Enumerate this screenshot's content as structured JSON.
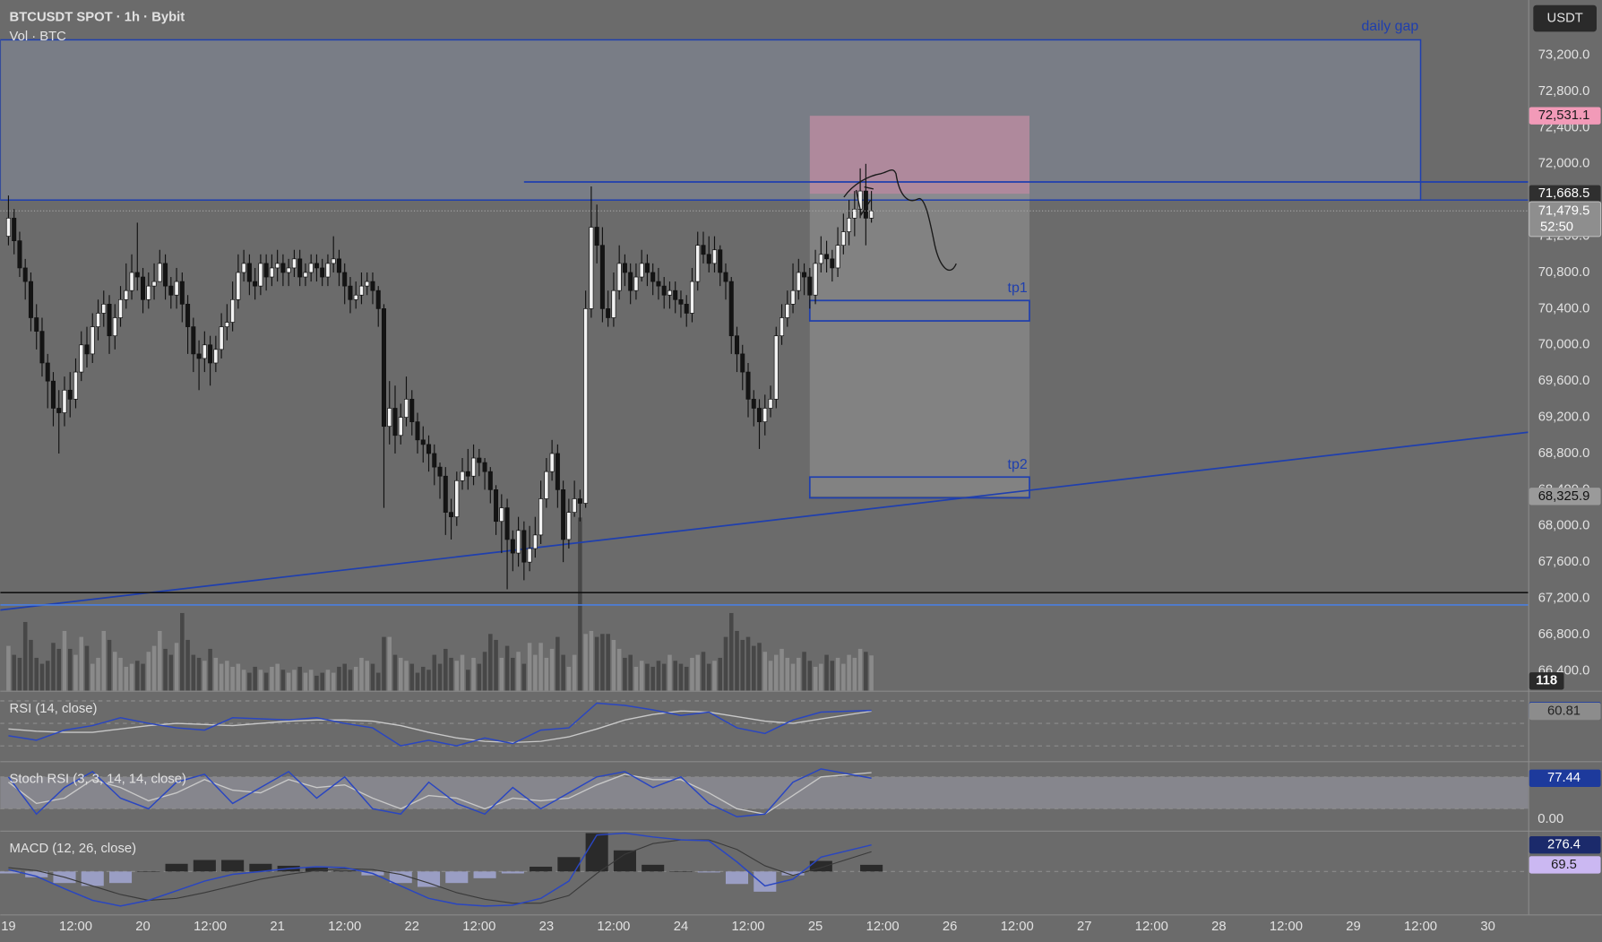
{
  "chart_data": {
    "type": "candlestick",
    "title": "BTCUSDT SPOT · 1h · Bybit",
    "volume_title": "Vol · BTC",
    "currency": "USDT",
    "xlim": [
      -1.46,
      271.2
    ],
    "ylim": [
      66180,
      73810
    ],
    "volume_ylim": [
      0,
      2313
    ],
    "up_color": "#f2f2f2",
    "down_color": "#141414",
    "wick_color": "#111111",
    "volume_up_color": "#8a8a8a",
    "volume_down_color": "#474747",
    "xticks": [
      {
        "value": 0,
        "label": "19"
      },
      {
        "value": 12,
        "label": "12:00"
      },
      {
        "value": 24,
        "label": "20"
      },
      {
        "value": 36,
        "label": "12:00"
      },
      {
        "value": 48,
        "label": "21"
      },
      {
        "value": 60,
        "label": "12:00"
      },
      {
        "value": 72,
        "label": "22"
      },
      {
        "value": 84,
        "label": "12:00"
      },
      {
        "value": 96,
        "label": "23"
      },
      {
        "value": 108,
        "label": "12:00"
      },
      {
        "value": 120,
        "label": "24"
      },
      {
        "value": 132,
        "label": "12:00"
      },
      {
        "value": 144,
        "label": "25"
      },
      {
        "value": 156,
        "label": "12:00"
      },
      {
        "value": 168,
        "label": "26"
      },
      {
        "value": 180,
        "label": "12:00"
      },
      {
        "value": 192,
        "label": "27"
      },
      {
        "value": 204,
        "label": "12:00"
      },
      {
        "value": 216,
        "label": "28"
      },
      {
        "value": 228,
        "label": "12:00"
      },
      {
        "value": 240,
        "label": "29"
      },
      {
        "value": 252,
        "label": "12:00"
      },
      {
        "value": 264,
        "label": "30"
      }
    ],
    "yticks": [
      {
        "value": 66400,
        "label": "66,400.0"
      },
      {
        "value": 66800,
        "label": "66,800.0"
      },
      {
        "value": 67200,
        "label": "67,200.0"
      },
      {
        "value": 67600,
        "label": "67,600.0"
      },
      {
        "value": 68000,
        "label": "68,000.0"
      },
      {
        "value": 68400,
        "label": "68,400.0"
      },
      {
        "value": 68800,
        "label": "68,800.0"
      },
      {
        "value": 69200,
        "label": "69,200.0"
      },
      {
        "value": 69600,
        "label": "69,600.0"
      },
      {
        "value": 70000,
        "label": "70,000.0"
      },
      {
        "value": 70400,
        "label": "70,400.0"
      },
      {
        "value": 70800,
        "label": "70,800.0"
      },
      {
        "value": 71200,
        "label": "71,200.0"
      },
      {
        "value": 71600,
        "label": "71,600.0"
      },
      {
        "value": 72000,
        "label": "72,000.0"
      },
      {
        "value": 72400,
        "label": "72,400.0"
      },
      {
        "value": 72800,
        "label": "72,800.0"
      },
      {
        "value": 73200,
        "label": "73,200.0"
      }
    ],
    "open": [
      71200,
      71400,
      71150,
      70850,
      70700,
      70300,
      70150,
      69800,
      69600,
      69300,
      69250,
      69500,
      69400,
      69700,
      70000,
      69900,
      70200,
      70350,
      70450,
      70100,
      70300,
      70500,
      70600,
      70800,
      70750,
      70500,
      70650,
      70700,
      70900,
      70650,
      70550,
      70700,
      70450,
      70200,
      69900,
      69850,
      70000,
      69800,
      69950,
      70200,
      70250,
      70500,
      70800,
      70900,
      70700,
      70650,
      70900,
      70750,
      70850,
      70900,
      70800,
      70850,
      70950,
      70750,
      70800,
      70900,
      70850,
      70750,
      70900,
      70950,
      70800,
      70650,
      70500,
      70550,
      70650,
      70700,
      70600,
      70400,
      69100,
      69300,
      69000,
      69200,
      69400,
      69150,
      68950,
      68900,
      68800,
      68650,
      68550,
      68150,
      68100,
      68500,
      68600,
      68550,
      68750,
      68700,
      68600,
      68400,
      68050,
      68200,
      67850,
      67700,
      67950,
      67600,
      67750,
      67900,
      68300,
      68600,
      68800,
      68400,
      67850,
      68150,
      68300,
      68250,
      70400,
      71300,
      71100,
      70400,
      70300,
      70600,
      70900,
      70800,
      70600,
      70750,
      70900,
      70800,
      70700,
      70650,
      70550,
      70600,
      70500,
      70450,
      70350,
      70700,
      71100,
      71000,
      70900,
      71050,
      70800,
      70700,
      70100,
      69900,
      69700,
      69400,
      69300,
      69150,
      69300,
      69400,
      70100,
      70300,
      70450,
      70600,
      70800,
      70750,
      70550,
      70900,
      71000,
      70950,
      70850,
      71100,
      71250,
      71400,
      71500,
      71700,
      71400
    ],
    "high": [
      71650,
      71500,
      71250,
      70950,
      70800,
      70450,
      70300,
      69900,
      69700,
      69500,
      69650,
      69700,
      69850,
      70150,
      70200,
      70350,
      70500,
      70600,
      70550,
      70450,
      70650,
      70900,
      71000,
      71350,
      70850,
      70800,
      70900,
      71050,
      71000,
      70750,
      70850,
      70800,
      70550,
      70300,
      70050,
      70150,
      70100,
      70100,
      70350,
      70450,
      70700,
      71000,
      71050,
      71000,
      70850,
      71000,
      71000,
      71000,
      71050,
      71000,
      70950,
      71050,
      71050,
      70900,
      71000,
      71000,
      70950,
      71000,
      71200,
      71050,
      70900,
      70750,
      70700,
      70800,
      70800,
      70800,
      70650,
      70450,
      69600,
      69550,
      69350,
      69650,
      69500,
      69250,
      69100,
      69000,
      68900,
      68700,
      68650,
      68300,
      68600,
      68750,
      68850,
      68900,
      68850,
      68750,
      68650,
      68450,
      68350,
      68300,
      67950,
      68100,
      68050,
      68000,
      68100,
      68500,
      68750,
      68950,
      68900,
      68500,
      68300,
      68500,
      68400,
      70600,
      71750,
      71550,
      71300,
      70600,
      70800,
      71100,
      71000,
      70900,
      70900,
      71050,
      71000,
      70900,
      70850,
      70750,
      70700,
      70700,
      70600,
      70550,
      70850,
      71250,
      71250,
      71200,
      71200,
      71100,
      70900,
      70750,
      70200,
      70000,
      69800,
      69500,
      69400,
      69450,
      69550,
      70200,
      70450,
      70600,
      70900,
      70950,
      70900,
      70850,
      71050,
      71200,
      71150,
      71050,
      71300,
      71450,
      71600,
      71700,
      71950,
      72000,
      71700
    ],
    "low": [
      71100,
      71000,
      70750,
      70500,
      70150,
      69950,
      69650,
      69300,
      69100,
      68800,
      69100,
      69200,
      69300,
      69600,
      69750,
      69800,
      70050,
      70200,
      69900,
      69950,
      70200,
      70400,
      70500,
      70600,
      70350,
      70400,
      70500,
      70700,
      70500,
      70400,
      70400,
      70250,
      69900,
      69700,
      69500,
      69700,
      69550,
      69700,
      69850,
      70050,
      70150,
      70400,
      70700,
      70550,
      70500,
      70550,
      70600,
      70650,
      70700,
      70650,
      70650,
      70750,
      70650,
      70650,
      70700,
      70700,
      70650,
      70650,
      70800,
      70650,
      70450,
      70350,
      70400,
      70450,
      70550,
      70450,
      70200,
      68200,
      68900,
      68800,
      68900,
      69100,
      69000,
      68800,
      68700,
      68600,
      68450,
      68300,
      67900,
      67850,
      68000,
      68400,
      68400,
      68450,
      68550,
      68400,
      68250,
      67900,
      67700,
      67300,
      67500,
      67550,
      67400,
      67500,
      67650,
      67800,
      68200,
      68500,
      68200,
      67600,
      67750,
      68100,
      68050,
      68200,
      70300,
      70900,
      70250,
      70200,
      70200,
      70500,
      70650,
      70450,
      70500,
      70700,
      70650,
      70550,
      70500,
      70400,
      70400,
      70350,
      70300,
      70200,
      70250,
      70600,
      70900,
      70800,
      70800,
      70650,
      70500,
      69900,
      69700,
      69500,
      69200,
      69100,
      68850,
      69000,
      69200,
      69300,
      70000,
      70200,
      70350,
      70500,
      70550,
      70400,
      70450,
      70800,
      70800,
      70700,
      70750,
      71000,
      71100,
      71200,
      71400,
      71100,
      71350
    ],
    "close": [
      71400,
      71150,
      70850,
      70700,
      70300,
      70150,
      69800,
      69600,
      69300,
      69250,
      69500,
      69400,
      69700,
      70000,
      69900,
      70200,
      70350,
      70450,
      70100,
      70300,
      70500,
      70600,
      70800,
      70750,
      70500,
      70650,
      70700,
      70900,
      70650,
      70550,
      70700,
      70450,
      70200,
      69900,
      69850,
      70000,
      69800,
      69950,
      70200,
      70250,
      70500,
      70800,
      70900,
      70700,
      70650,
      70900,
      70750,
      70850,
      70900,
      70800,
      70850,
      70950,
      70750,
      70800,
      70900,
      70850,
      70750,
      70900,
      70950,
      70800,
      70650,
      70500,
      70550,
      70650,
      70700,
      70600,
      70400,
      69100,
      69300,
      69000,
      69200,
      69400,
      69150,
      68950,
      68900,
      68800,
      68650,
      68550,
      68150,
      68100,
      68500,
      68600,
      68550,
      68750,
      68700,
      68600,
      68400,
      68050,
      68200,
      67850,
      67700,
      67950,
      67600,
      67750,
      67900,
      68300,
      68600,
      68800,
      68400,
      67850,
      68150,
      68300,
      68250,
      70400,
      71300,
      71100,
      70400,
      70300,
      70600,
      70900,
      70800,
      70600,
      70750,
      70900,
      70800,
      70700,
      70650,
      70550,
      70600,
      70500,
      70450,
      70350,
      70700,
      71100,
      71000,
      70900,
      71050,
      70800,
      70700,
      70100,
      69900,
      69700,
      69400,
      69300,
      69150,
      69300,
      69400,
      70100,
      70300,
      70450,
      70600,
      70800,
      70750,
      70550,
      70900,
      71000,
      70950,
      70850,
      71100,
      71250,
      71400,
      71500,
      71700,
      71400,
      71479.5
    ],
    "volume": [
      150,
      120,
      110,
      230,
      170,
      110,
      90,
      100,
      160,
      140,
      200,
      140,
      120,
      180,
      150,
      90,
      110,
      200,
      170,
      130,
      110,
      80,
      90,
      100,
      90,
      130,
      150,
      200,
      140,
      120,
      160,
      260,
      170,
      120,
      110,
      100,
      140,
      110,
      90,
      100,
      80,
      90,
      70,
      60,
      80,
      70,
      60,
      80,
      90,
      70,
      60,
      70,
      80,
      60,
      70,
      50,
      60,
      70,
      60,
      80,
      90,
      70,
      80,
      110,
      100,
      90,
      60,
      180,
      180,
      120,
      110,
      100,
      90,
      60,
      80,
      70,
      120,
      90,
      140,
      110,
      100,
      120,
      70,
      110,
      90,
      130,
      190,
      170,
      110,
      150,
      110,
      130,
      90,
      160,
      120,
      160,
      110,
      140,
      180,
      120,
      80,
      120,
      580,
      190,
      200,
      180,
      190,
      190,
      170,
      140,
      110,
      120,
      80,
      100,
      90,
      80,
      100,
      90,
      120,
      100,
      90,
      80,
      110,
      120,
      130,
      90,
      100,
      110,
      180,
      260,
      200,
      170,
      180,
      150,
      160,
      130,
      100,
      120,
      140,
      110,
      90,
      110,
      130,
      100,
      80,
      90,
      120,
      100,
      110,
      90,
      120,
      110,
      140,
      130,
      118
    ],
    "last_price": {
      "value": 71479.5,
      "label": "71,479.5",
      "countdown": "52:50",
      "color": "#8e8e8e"
    },
    "daily_gap": {
      "label": "daily gap",
      "start": -1.46,
      "end": 252,
      "top": 73370,
      "bottom": 71600,
      "color": "#1f3fae"
    },
    "position": {
      "start": 143,
      "end": 182.2,
      "stop": {
        "value": 72531.1,
        "label": "72,531.1"
      },
      "entry": {
        "value": 71668.5,
        "label": "71,668.5"
      },
      "target": {
        "value": 68325.9,
        "label": "68,325.9"
      },
      "stop_color": "#f29ab8",
      "target_color": "#9a9a9a"
    },
    "targets": [
      {
        "label": "tp1",
        "top": 70490,
        "bottom": 70265
      },
      {
        "label": "tp2",
        "top": 68540,
        "bottom": 68310
      }
    ],
    "trend_line": {
      "from": [
        -1.46,
        67071
      ],
      "to": [
        271.2,
        69035
      ],
      "color": "#1f3fae"
    },
    "levels": [
      {
        "price": 71800,
        "start": 92,
        "color": "#1f3fae"
      },
      {
        "price": 67263,
        "start": -1.46,
        "color": "#111111"
      },
      {
        "price": 67127,
        "start": -1.46,
        "color": "#4a7ee0"
      }
    ],
    "indicators": {
      "rsi": {
        "title": "RSI (14, close)",
        "x": [
          0,
          5,
          10,
          15,
          20,
          25,
          30,
          35,
          40,
          45,
          50,
          55,
          60,
          65,
          70,
          75,
          80,
          85,
          90,
          95,
          100,
          105,
          110,
          115,
          120,
          125,
          130,
          135,
          140,
          145,
          154
        ],
        "ylim": [
          16.4,
          78.2
        ],
        "levels": [
          70,
          50,
          30
        ],
        "color": "#2a46c0",
        "ma_color": "#c8c8c8",
        "values": [
          39,
          35,
          44,
          48,
          55,
          50,
          46,
          44,
          55,
          54,
          53,
          55,
          50,
          46,
          30,
          35,
          30,
          37,
          32,
          44,
          46,
          68,
          66,
          62,
          57,
          60,
          46,
          41,
          53,
          60,
          61.53
        ],
        "ma": [
          45,
          43,
          42,
          42,
          45,
          48,
          50,
          49,
          48,
          50,
          52,
          53,
          53,
          52,
          48,
          42,
          37,
          34,
          33,
          34,
          38,
          45,
          53,
          58,
          61,
          60,
          56,
          52,
          50,
          54,
          60.81
        ]
      },
      "stoch": {
        "title": "Stoch RSI (3, 3, 14, 14, close)",
        "ylim": [
          -21.2,
          107.7
        ],
        "band": [
          20,
          80
        ],
        "yticks": [
          {
            "value": 0,
            "label": "0.00"
          }
        ],
        "color": "#2a46c0",
        "d_color": "#c8c8c8",
        "k": [
          80,
          10,
          60,
          90,
          40,
          20,
          70,
          85,
          30,
          60,
          90,
          40,
          80,
          20,
          10,
          70,
          30,
          10,
          60,
          20,
          50,
          80,
          90,
          60,
          80,
          30,
          5,
          10,
          70,
          95,
          77.44
        ],
        "d": [
          70,
          30,
          40,
          75,
          60,
          35,
          50,
          75,
          55,
          50,
          75,
          60,
          65,
          40,
          20,
          45,
          40,
          20,
          40,
          35,
          40,
          65,
          85,
          75,
          75,
          50,
          20,
          10,
          45,
          80,
          88
        ]
      },
      "macd": {
        "title": "MACD (12, 26, close)",
        "ylim": [
          -447,
          415
        ],
        "color": "#2a46c0",
        "signal_color": "#3a3a3a",
        "hist_up": "#2a2a2a",
        "hist_down": "#9a9ec4",
        "macd": [
          20,
          -50,
          -180,
          -300,
          -360,
          -300,
          -200,
          -100,
          -30,
          0,
          30,
          50,
          40,
          -20,
          -150,
          -280,
          -340,
          -360,
          -350,
          -280,
          -100,
          380,
          400,
          360,
          330,
          320,
          100,
          -150,
          -80,
          150,
          276.4
        ],
        "signal": [
          40,
          10,
          -60,
          -150,
          -240,
          -300,
          -280,
          -220,
          -150,
          -80,
          -30,
          10,
          30,
          20,
          -30,
          -120,
          -220,
          -290,
          -330,
          -330,
          -250,
          -20,
          180,
          290,
          330,
          330,
          230,
          60,
          -40,
          40,
          206.9
        ],
        "hist": [
          -20,
          -60,
          -120,
          -150,
          -120,
          0,
          80,
          120,
          120,
          80,
          60,
          40,
          10,
          -40,
          -120,
          -160,
          -120,
          -70,
          -20,
          50,
          150,
          400,
          220,
          70,
          0,
          -10,
          -130,
          -210,
          -40,
          110,
          69.5
        ]
      }
    }
  }
}
